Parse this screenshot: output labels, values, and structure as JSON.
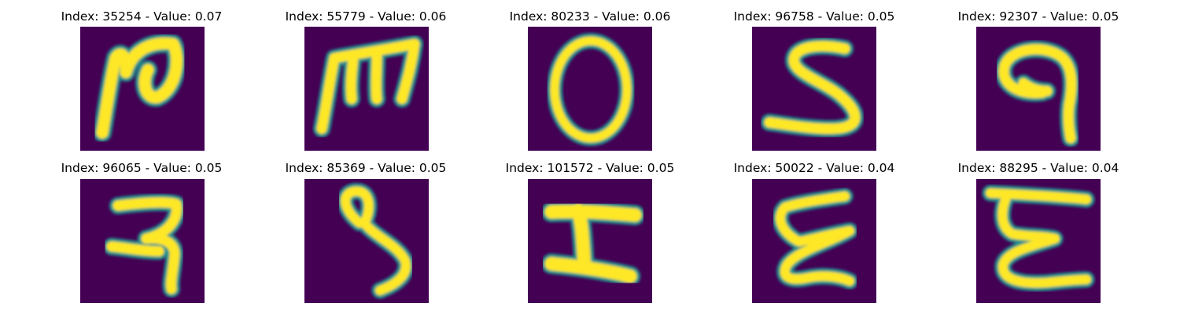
{
  "figure": {
    "panels": [
      {
        "title": "Index: 35254 - Value: 0.07",
        "glyph": "n-like-stroke"
      },
      {
        "title": "Index: 55779 - Value: 0.06",
        "glyph": "m-like-stroke"
      },
      {
        "title": "Index: 80233 - Value: 0.06",
        "glyph": "o-like-ring"
      },
      {
        "title": "Index: 96758 - Value: 0.05",
        "glyph": "s-like-stroke"
      },
      {
        "title": "Index: 92307 - Value: 0.05",
        "glyph": "nine-like-stroke"
      },
      {
        "title": "Index: 96065 - Value: 0.05",
        "glyph": "ra-like-stroke"
      },
      {
        "title": "Index: 85369 - Value: 0.05",
        "glyph": "loop-tail-stroke"
      },
      {
        "title": "Index: 101572 - Value: 0.05",
        "glyph": "zigzag-stroke"
      },
      {
        "title": "Index: 50022 - Value: 0.04",
        "glyph": "xi-like-stroke"
      },
      {
        "title": "Index: 88295 - Value: 0.04",
        "glyph": "xi-like-stroke"
      }
    ],
    "colors": {
      "background": "#440154",
      "stroke_core": "#fde725",
      "stroke_edge": "#21918c",
      "stroke_mid": "#5ec962"
    }
  }
}
